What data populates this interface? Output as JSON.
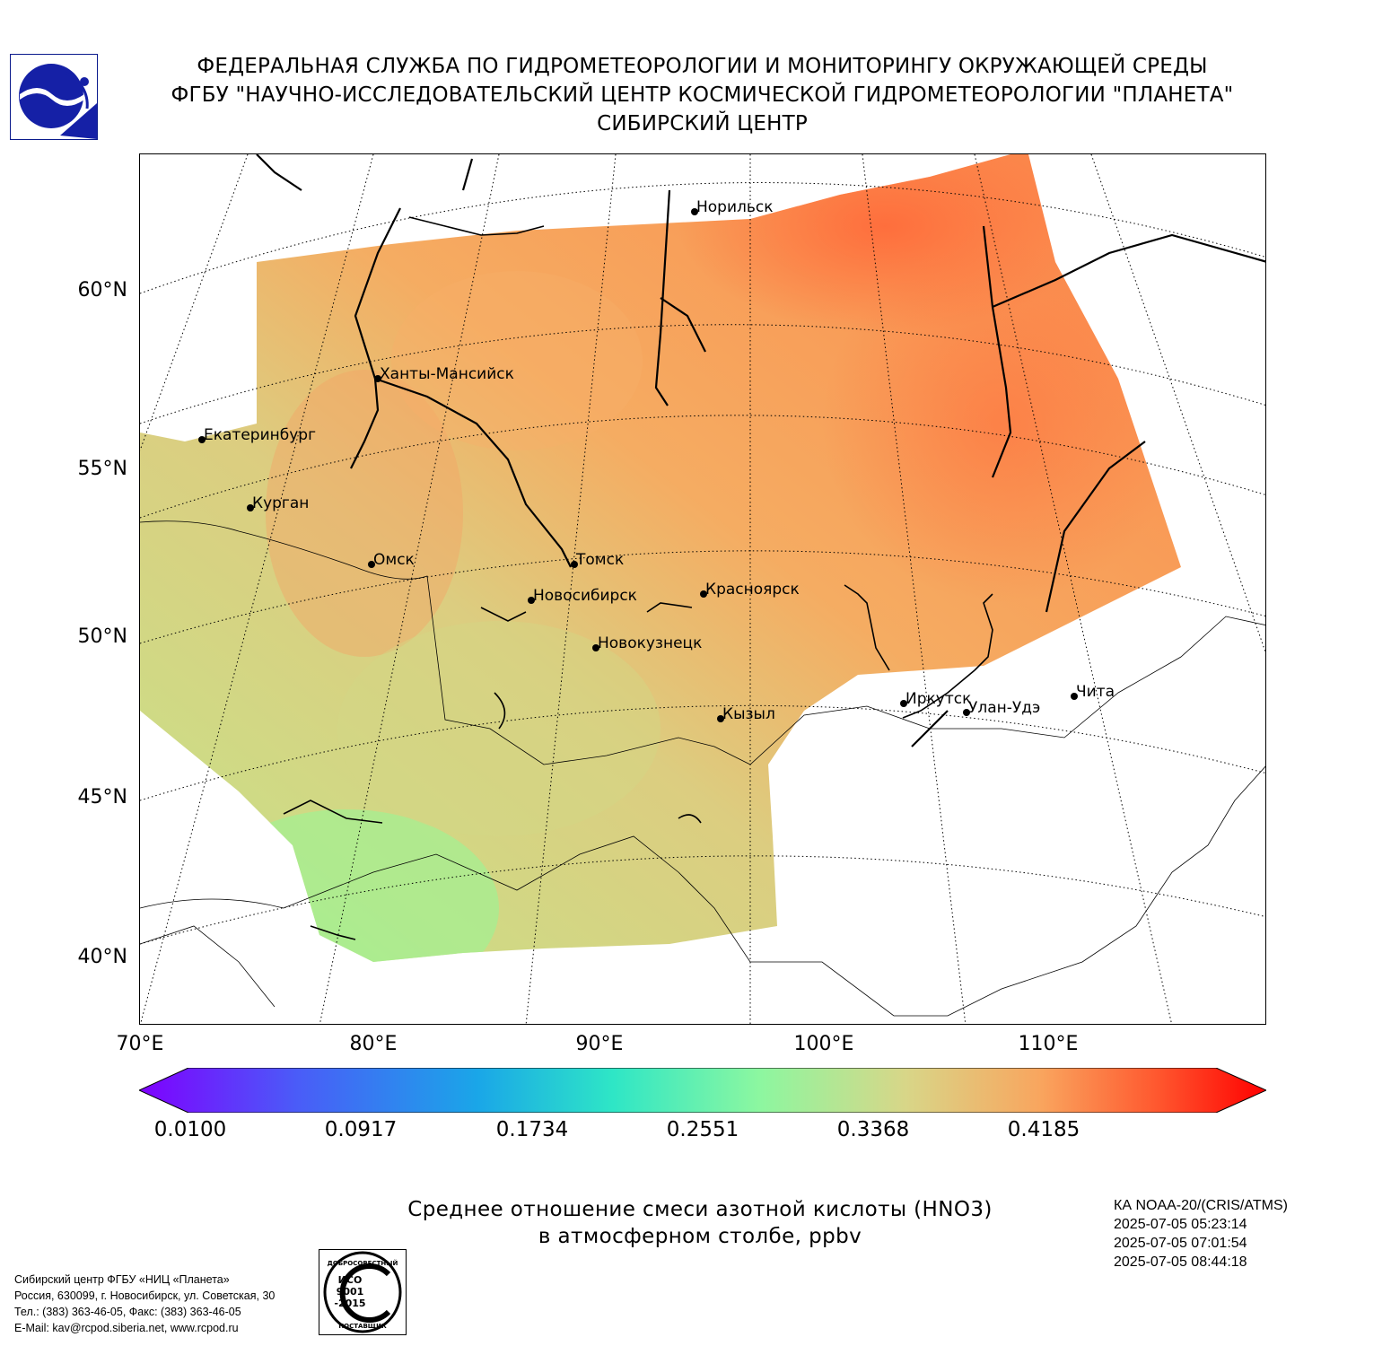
{
  "header": {
    "line1": "ФЕДЕРАЛЬНАЯ СЛУЖБА ПО ГИДРОМЕТЕОРОЛОГИИ И МОНИТОРИНГУ ОКРУЖАЮЩЕЙ СРЕДЫ",
    "line2": "ФГБУ \"НАУЧНО-ИССЛЕДОВАТЕЛЬСКИЙ ЦЕНТР КОСМИЧЕСКОЙ ГИДРОМЕТЕОРОЛОГИИ \"ПЛАНЕТА\"",
    "line3": "СИБИРСКИЙ ЦЕНТР"
  },
  "map": {
    "lat_labels": [
      "60°N",
      "55°N",
      "50°N",
      "45°N",
      "40°N"
    ],
    "lon_labels": [
      "70°E",
      "80°E",
      "90°E",
      "100°E",
      "110°E"
    ],
    "cities": [
      {
        "name": "Норильск"
      },
      {
        "name": "Ханты-Мансийск"
      },
      {
        "name": "Екатеринбург"
      },
      {
        "name": "Курган"
      },
      {
        "name": "Омск"
      },
      {
        "name": "Томск"
      },
      {
        "name": "Новосибирск"
      },
      {
        "name": "Красноярск"
      },
      {
        "name": "Новокузнецк"
      },
      {
        "name": "Иркутск"
      },
      {
        "name": "Улан-Удэ"
      },
      {
        "name": "Чита"
      },
      {
        "name": "Кызыл"
      }
    ]
  },
  "colorbar": {
    "tick_labels": [
      "0.0100",
      "0.0917",
      "0.1734",
      "0.2551",
      "0.3368",
      "0.4185"
    ],
    "range": [
      0.01,
      0.5
    ],
    "colors": [
      "#7f00ff",
      "#4a5cf8",
      "#1aa6e8",
      "#2ee6c6",
      "#8cf7a0",
      "#d8d688",
      "#f9a55e",
      "#ff5a30",
      "#ff0000"
    ]
  },
  "caption": {
    "line1": "Среднее отношение смеси азотной кислоты (HNO3)",
    "line2": "в атмосферном столбе, ppbv"
  },
  "satellite": {
    "name": "КА NOAA-20/(CRIS/ATMS)",
    "times": [
      "2025-07-05 05:23:14",
      "2025-07-05 07:01:54",
      "2025-07-05 08:44:18"
    ]
  },
  "footer": {
    "line1": "Сибирский центр ФГБУ «НИЦ «Планета»",
    "line2": "Россия, 630099, г. Новосибирск, ул. Советская, 30",
    "line3": "Тел.: (383) 363-46-05, Факс: (383) 363-46-05",
    "line4": "E-Mail: kav@rcpod.siberia.net, www.rcpod.ru"
  },
  "iso_stamp": {
    "top": "ДОБРОСОВЕСТНЫЙ",
    "l1": "ИСО",
    "l2": "9001",
    "l3": "-2015",
    "bottom": "ПОСТАВЩИК"
  }
}
